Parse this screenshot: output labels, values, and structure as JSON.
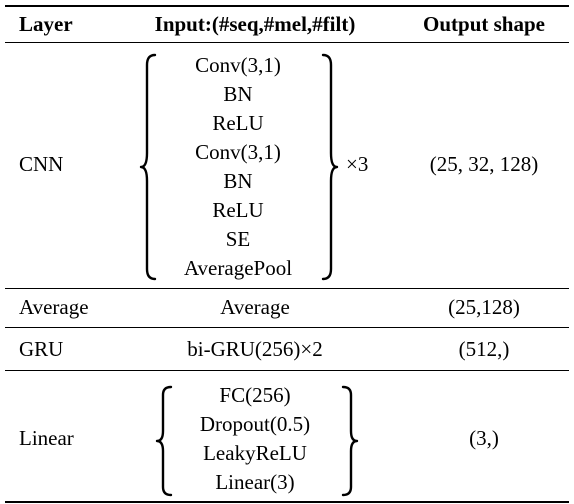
{
  "headers": {
    "layer": "Layer",
    "input": "Input:(#seq,#mel,#filt)",
    "output": "Output shape"
  },
  "rows": {
    "cnn": {
      "layer": "CNN",
      "ops": [
        "Conv(3,1)",
        "BN",
        "ReLU",
        "Conv(3,1)",
        "BN",
        "ReLU",
        "SE",
        "AveragePool"
      ],
      "repeat": "×3",
      "output": "(25, 32, 128)"
    },
    "average": {
      "layer": "Average",
      "op": "Average",
      "output": "(25,128)"
    },
    "gru": {
      "layer": "GRU",
      "op": "bi-GRU(256)×2",
      "output": "(512,)"
    },
    "linear": {
      "layer": "Linear",
      "ops": [
        "FC(256)",
        "Dropout(0.5)",
        "LeakyReLU",
        "Linear(3)"
      ],
      "output": "(3,)"
    }
  }
}
